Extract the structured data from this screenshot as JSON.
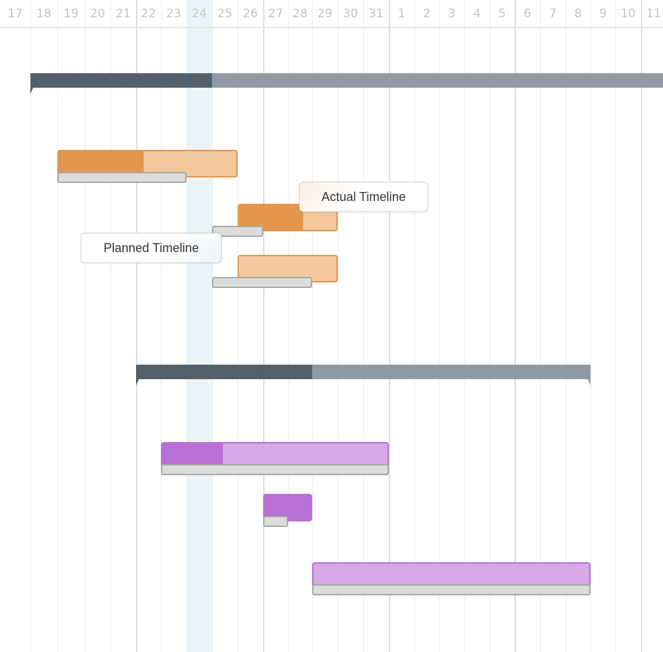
{
  "chart_data": {
    "type": "gantt",
    "days": [
      "17",
      "18",
      "19",
      "20",
      "21",
      "22",
      "23",
      "24",
      "25",
      "26",
      "27",
      "28",
      "29",
      "30",
      "31",
      "1",
      "2",
      "3",
      "4",
      "5",
      "6",
      "7",
      "8",
      "9",
      "10",
      "11"
    ],
    "today": "24",
    "groups": [
      {
        "summary": {
          "start": "18",
          "end": "11",
          "progress_through": "24"
        },
        "color": "#e3964d",
        "color_light": "#f2c79b",
        "tasks": [
          {
            "actual": {
              "start": "19",
              "end": "25"
            },
            "progress_percent": 48,
            "planned": {
              "start": "19",
              "end": "23"
            }
          },
          {
            "actual": {
              "start": "26",
              "end": "29"
            },
            "progress_percent": 66,
            "planned": {
              "start": "25",
              "end": "26"
            }
          },
          {
            "actual": {
              "start": "26",
              "end": "29"
            },
            "progress_percent": 0,
            "planned": {
              "start": "25",
              "end": "28"
            }
          }
        ]
      },
      {
        "summary": {
          "start": "22",
          "end": "8",
          "progress_through": "28"
        },
        "color": "#b970d6",
        "color_light": "#d6a8e6",
        "tasks": [
          {
            "actual": {
              "start": "23",
              "end": "31"
            },
            "progress_percent": 27,
            "planned": {
              "start": "23",
              "end": "31"
            }
          },
          {
            "actual": {
              "start": "27",
              "end": "28"
            },
            "progress_percent": 100,
            "planned": {
              "start": "27",
              "end": "27"
            }
          },
          {
            "actual": {
              "start": "29",
              "end": "8"
            },
            "progress_percent": 0,
            "planned": {
              "start": "29",
              "end": "8"
            }
          }
        ]
      }
    ],
    "annotations": {
      "actual": "Actual Timeline",
      "planned": "Planned Timeline"
    }
  },
  "colors": {
    "summary": "#8e99a3",
    "summary_done": "#4d5963",
    "planned": "#dcdcdc",
    "today": "#eaf4f8"
  }
}
